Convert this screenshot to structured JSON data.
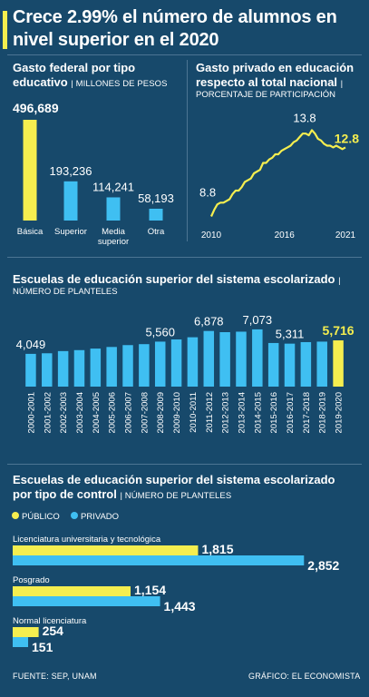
{
  "headline": "Crece 2.99% el número de alumnos en nivel superior en el 2020",
  "colors": {
    "background": "#17496b",
    "yellow": "#f5ee4f",
    "blue": "#3fbff2",
    "divider": "#4c7593"
  },
  "federal": {
    "title_line1": "Gasto federal por tipo",
    "title_line2": "educativo",
    "unit": "| MILLONES DE PESOS"
  },
  "private": {
    "title_line1": "Gasto privado en educación",
    "title_line2": "respecto al total nacional",
    "title_bar": "|",
    "unit": "PORCENTAJE DE PARTICIPACIÓN"
  },
  "schools": {
    "title": "Escuelas de educación superior del sistema escolarizado",
    "title_bar": "|",
    "unit": "NÚMERO DE PLANTELES"
  },
  "control": {
    "title_line1": "Escuelas de educación superior del sistema escolarizado",
    "title_line2": "por tipo de control",
    "unit": "| NÚMERO DE PLANTELES",
    "legend_public": "PÚBLICO",
    "legend_private": "PRIVADO"
  },
  "footer": {
    "source": "FUENTE: SEP, UNAM",
    "credit": "GRÁFICO: EL ECONOMISTA"
  },
  "chart_data": [
    {
      "type": "bar",
      "categories": [
        "Básica",
        "Superior",
        "Media superior",
        "Otra"
      ],
      "values": [
        496689,
        193236,
        114241,
        58193
      ],
      "labels": [
        "496,689",
        "193,236",
        "114,241",
        "58,193"
      ],
      "highlight_index": 0
    },
    {
      "type": "line",
      "x": [
        2010,
        2010.25,
        2010.5,
        2010.75,
        2011,
        2011.25,
        2011.5,
        2011.75,
        2012,
        2012.25,
        2012.5,
        2012.75,
        2013,
        2013.25,
        2013.5,
        2013.75,
        2014,
        2014.25,
        2014.5,
        2014.75,
        2015,
        2015.25,
        2015.5,
        2015.75,
        2016,
        2016.25,
        2016.5,
        2016.75,
        2017,
        2017.25,
        2017.5,
        2017.75,
        2018,
        2018.25,
        2018.5,
        2018.75,
        2019,
        2019.25,
        2019.5,
        2019.75,
        2020,
        2020.25,
        2020.5,
        2020.75,
        2021
      ],
      "y": [
        8.8,
        9.2,
        9.5,
        9.6,
        9.6,
        9.7,
        9.8,
        10.1,
        10.3,
        10.3,
        10.5,
        10.8,
        10.9,
        11.0,
        11.3,
        11.4,
        11.5,
        11.9,
        11.9,
        12.1,
        12.2,
        12.4,
        12.4,
        12.6,
        12.7,
        12.8,
        12.9,
        13.1,
        13.2,
        13.4,
        13.6,
        13.6,
        13.5,
        13.8,
        13.6,
        13.3,
        13.2,
        13.0,
        12.9,
        12.9,
        12.8,
        12.9,
        12.8,
        12.7,
        12.8
      ],
      "ylim": [
        8.3,
        14.4
      ],
      "x_ticks": [
        "2010",
        "2016",
        "2021"
      ],
      "annotations": [
        {
          "x": 2010,
          "y": 8.8,
          "text": "8.8"
        },
        {
          "x": 2018.25,
          "y": 13.8,
          "text": "13.8"
        },
        {
          "x": 2021,
          "y": 12.8,
          "text": "12.8"
        }
      ]
    },
    {
      "type": "bar",
      "categories": [
        "2000-2001",
        "2001-2002",
        "2002-2003",
        "2003-2004",
        "2004-2005",
        "2005-2006",
        "2006-2007",
        "2007-2008",
        "2008-2009",
        "2009-2010",
        "2010-2011",
        "2011-2012",
        "2012-2013",
        "2013-2014",
        "2014-2015",
        "2015-2016",
        "2016-2017",
        "2017-2018",
        "2018-2019",
        "2019-2020"
      ],
      "values": [
        4049,
        4120,
        4390,
        4510,
        4700,
        4900,
        5130,
        5250,
        5560,
        5830,
        6100,
        6878,
        6730,
        6790,
        7073,
        5390,
        5311,
        5500,
        5560,
        5716
      ],
      "labels": [
        "4,049",
        "",
        "",
        "",
        "",
        "",
        "",
        "",
        "5,560",
        "",
        "",
        "6,878",
        "",
        "",
        "7,073",
        "",
        "5,311",
        "",
        "",
        "5,716"
      ],
      "ylim": [
        0,
        8300
      ],
      "highlight_index": 19
    },
    {
      "type": "bar",
      "orientation": "horizontal",
      "categories": [
        "Licenciatura universitaria y tecnológica",
        "Posgrado",
        "Normal licenciatura"
      ],
      "series": [
        {
          "name": "PÚBLICO",
          "values": [
            1815,
            1154,
            254
          ],
          "labels": [
            "1,815",
            "1,154",
            "254"
          ]
        },
        {
          "name": "PRIVADO",
          "values": [
            2852,
            1443,
            151
          ],
          "labels": [
            "2,852",
            "1,443",
            "151"
          ]
        }
      ],
      "xlim": [
        0,
        3240
      ]
    }
  ]
}
